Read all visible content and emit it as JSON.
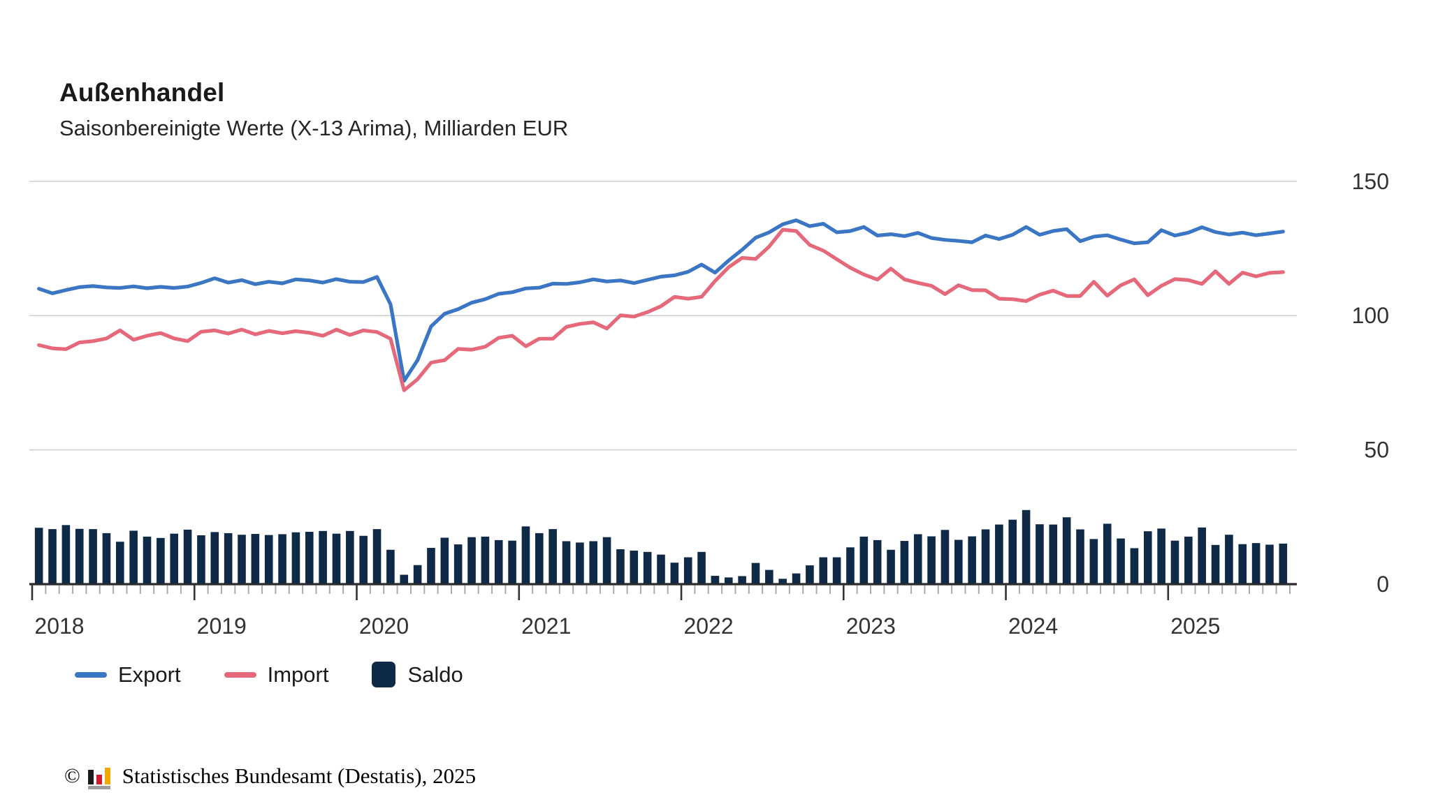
{
  "header": {
    "title": "Außenhandel",
    "subtitle": "Saisonbereinigte Werte (X-13 Arima), Milliarden EUR"
  },
  "legend": {
    "export_label": "Export",
    "import_label": "Import",
    "saldo_label": "Saldo"
  },
  "footer": {
    "copyright_symbol": "©",
    "text": "Statistisches Bundesamt (Destatis), 2025",
    "logo_colors": {
      "bar_black": "#1a1a1a",
      "bar_red": "#d21a2c",
      "bar_gold": "#f2a800",
      "base_gray": "#9e9e9e"
    }
  },
  "colors": {
    "export_line": "#3b76c4",
    "import_line": "#e5697b",
    "saldo_bar": "#0e2a47",
    "gridline": "#cccccc",
    "axis": "#2b2b2b",
    "minor_tick": "#ababab",
    "major_tick": "#333333",
    "tick_label": "#333333"
  },
  "chart_data": {
    "type": "line+bar",
    "title": "Außenhandel",
    "subtitle": "Saisonbereinigte Werte (X-13 Arima), Milliarden EUR",
    "unit": "Milliarden EUR",
    "frequency": "monthly",
    "x_start": "2018-01",
    "x_end": "2025-09",
    "x_tick_labels": [
      "2018",
      "2019",
      "2020",
      "2021",
      "2022",
      "2023",
      "2024",
      "2025"
    ],
    "y_ticks": [
      0,
      50,
      100,
      150
    ],
    "ylim": [
      0,
      160
    ],
    "grid": "horizontal",
    "legend_position": "bottom",
    "series": [
      {
        "name": "Export",
        "type": "line",
        "color": "#3b76c4",
        "values": [
          110.0,
          108.3,
          109.5,
          110.6,
          111.0,
          110.5,
          110.3,
          110.9,
          110.2,
          110.7,
          110.3,
          110.8,
          112.2,
          113.9,
          112.3,
          113.2,
          111.7,
          112.6,
          112.0,
          113.5,
          113.1,
          112.3,
          113.6,
          112.6,
          112.5,
          114.4,
          104.2,
          75.7,
          83.4,
          96.0,
          100.7,
          102.4,
          104.8,
          106.1,
          108.1,
          108.7,
          110.1,
          110.4,
          111.9,
          111.8,
          112.4,
          113.5,
          112.7,
          113.1,
          112.1,
          113.3,
          114.5,
          115.0,
          116.3,
          119.0,
          116.0,
          120.5,
          124.5,
          129.0,
          131.0,
          134.0,
          135.5,
          133.3,
          134.2,
          131.0,
          131.5,
          133.0,
          129.8,
          130.3,
          129.6,
          130.8,
          128.9,
          128.2,
          127.8,
          127.3,
          129.8,
          128.5,
          130.1,
          133.0,
          130.1,
          131.5,
          132.2,
          127.7,
          129.4,
          129.9,
          128.3,
          126.9,
          127.3,
          131.8,
          129.8,
          130.9,
          132.9,
          131.1,
          130.2,
          130.9,
          129.9,
          130.6,
          131.3
        ]
      },
      {
        "name": "Import",
        "type": "line",
        "color": "#e5697b",
        "values": [
          89.0,
          87.8,
          87.5,
          90.0,
          90.5,
          91.5,
          94.5,
          91.0,
          92.5,
          93.5,
          91.5,
          90.5,
          94.0,
          94.5,
          93.3,
          94.8,
          93.0,
          94.3,
          93.4,
          94.2,
          93.6,
          92.5,
          94.8,
          92.8,
          94.5,
          93.9,
          91.4,
          72.2,
          76.3,
          82.5,
          83.4,
          87.6,
          87.3,
          88.4,
          91.7,
          92.5,
          88.6,
          91.4,
          91.4,
          95.8,
          96.9,
          97.5,
          95.2,
          100.1,
          99.6,
          101.3,
          103.5,
          107.0,
          106.3,
          107.0,
          112.9,
          118.0,
          121.5,
          121.1,
          125.7,
          132.0,
          131.5,
          126.3,
          124.2,
          121.0,
          117.8,
          115.3,
          113.4,
          117.5,
          113.5,
          112.2,
          111.1,
          108.0,
          111.3,
          109.5,
          109.4,
          106.3,
          106.1,
          105.4,
          107.8,
          109.3,
          107.3,
          107.3,
          112.6,
          107.4,
          111.3,
          113.5,
          107.6,
          111.1,
          113.6,
          113.2,
          111.8,
          116.5,
          111.8,
          116.0,
          114.6,
          115.9,
          116.2
        ]
      },
      {
        "name": "Saldo",
        "type": "bar",
        "color": "#0e2a47",
        "values": [
          21.0,
          20.5,
          22.0,
          20.6,
          20.5,
          19.0,
          15.8,
          19.9,
          17.7,
          17.2,
          18.8,
          20.3,
          18.2,
          19.4,
          19.0,
          18.4,
          18.7,
          18.3,
          18.6,
          19.3,
          19.5,
          19.8,
          18.8,
          19.8,
          18.0,
          20.5,
          12.8,
          3.5,
          7.1,
          13.5,
          17.3,
          14.8,
          17.5,
          17.7,
          16.4,
          16.2,
          21.5,
          19.0,
          20.5,
          16.0,
          15.5,
          16.0,
          17.5,
          13.0,
          12.5,
          12.0,
          11.0,
          8.0,
          10.0,
          12.0,
          3.1,
          2.5,
          3.0,
          7.9,
          5.3,
          2.0,
          4.0,
          7.0,
          10.0,
          10.0,
          13.7,
          17.7,
          16.4,
          12.8,
          16.1,
          18.6,
          17.8,
          20.2,
          16.5,
          17.8,
          20.4,
          22.2,
          24.0,
          27.6,
          22.3,
          22.2,
          24.9,
          20.4,
          16.8,
          22.5,
          17.0,
          13.4,
          19.7,
          20.7,
          16.2,
          17.7,
          21.1,
          14.6,
          18.4,
          14.9,
          15.3,
          14.7,
          15.1
        ]
      }
    ]
  }
}
